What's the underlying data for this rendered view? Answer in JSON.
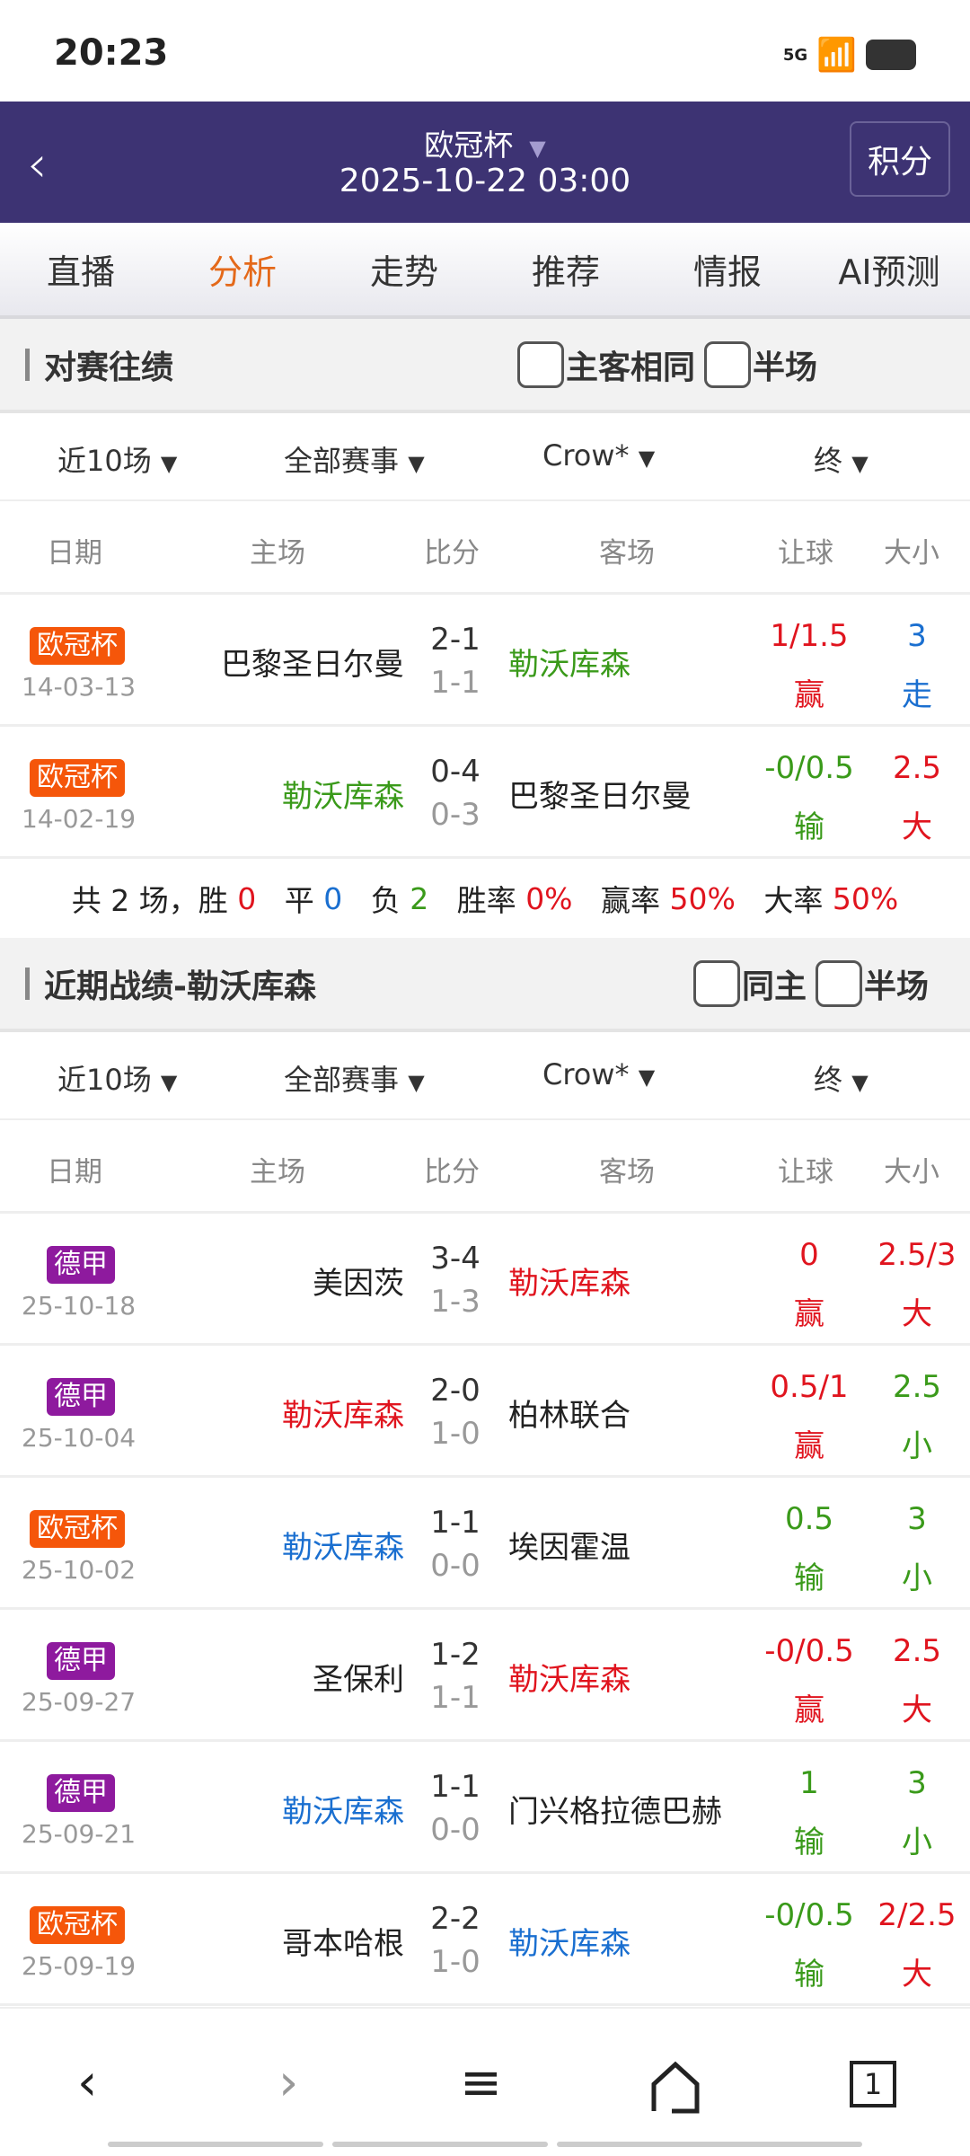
{
  "status": {
    "time": "20:23",
    "network": "5G"
  },
  "header": {
    "title": "欧冠杯",
    "datetime": "2025-10-22 03:00",
    "standings_button": "积分"
  },
  "tabs": [
    {
      "label": "直播"
    },
    {
      "label": "分析",
      "active": true
    },
    {
      "label": "走势"
    },
    {
      "label": "推荐"
    },
    {
      "label": "情报"
    },
    {
      "label": "AI预测"
    }
  ],
  "colors": {
    "header": "#3d3373",
    "accent": "#e4691a",
    "red": "#e0141e",
    "green": "#3a9a1a",
    "blue": "#1a6fd0",
    "badge_ucl": "#f5560a",
    "badge_bundesliga": "#8e1a9e"
  },
  "columns": [
    "日期",
    "主场",
    "比分",
    "客场",
    "让球",
    "大小"
  ],
  "h2h": {
    "title": "对赛往绩",
    "check1": "主客相同",
    "check2": "半场",
    "filters": [
      "近10场",
      "全部赛事",
      "Crow*",
      "终"
    ],
    "rows": [
      {
        "league": "欧冠杯",
        "lc": "badge_ucl",
        "date": "14-03-13",
        "home": "巴黎圣日尔曼",
        "hc": "#222",
        "score": "2-1",
        "half": "1-1",
        "away": "勒沃库森",
        "ac": "green",
        "hcap": "1/1.5",
        "hcapc": "red",
        "hres": "赢",
        "hresc": "red",
        "ou": "3",
        "ouc": "blue",
        "ores": "走",
        "oresc": "blue"
      },
      {
        "league": "欧冠杯",
        "lc": "badge_ucl",
        "date": "14-02-19",
        "home": "勒沃库森",
        "hc": "green",
        "score": "0-4",
        "half": "0-3",
        "away": "巴黎圣日尔曼",
        "ac": "#222",
        "hcap": "-0/0.5",
        "hcapc": "green",
        "hres": "输",
        "hresc": "green",
        "ou": "2.5",
        "ouc": "red",
        "ores": "大",
        "oresc": "red"
      }
    ],
    "summary": [
      [
        "共 2 场，",
        "#222"
      ],
      [
        "胜 ",
        "#222"
      ],
      [
        "0",
        "red"
      ],
      [
        "   平 ",
        "#222"
      ],
      [
        "0",
        "blue"
      ],
      [
        "   负 ",
        "#222"
      ],
      [
        "2",
        "green"
      ],
      [
        "   胜率 ",
        "#222"
      ],
      [
        "0%",
        "red"
      ],
      [
        "   赢率 ",
        "#222"
      ],
      [
        "50%",
        "red"
      ],
      [
        "   大率 ",
        "#222"
      ],
      [
        "50%",
        "red"
      ]
    ]
  },
  "recent": {
    "title": "近期战绩-勒沃库森",
    "check1": "同主",
    "check2": "半场",
    "filters": [
      "近10场",
      "全部赛事",
      "Crow*",
      "终"
    ],
    "rows": [
      {
        "league": "德甲",
        "lc": "badge_bundesliga",
        "date": "25-10-18",
        "home": "美因茨",
        "hc": "#222",
        "score": "3-4",
        "half": "1-3",
        "away": "勒沃库森",
        "ac": "red",
        "hcap": "0",
        "hcapc": "red",
        "hres": "赢",
        "hresc": "red",
        "ou": "2.5/3",
        "ouc": "red",
        "ores": "大",
        "oresc": "red"
      },
      {
        "league": "德甲",
        "lc": "badge_bundesliga",
        "date": "25-10-04",
        "home": "勒沃库森",
        "hc": "red",
        "score": "2-0",
        "half": "1-0",
        "away": "柏林联合",
        "ac": "#222",
        "hcap": "0.5/1",
        "hcapc": "red",
        "hres": "赢",
        "hresc": "red",
        "ou": "2.5",
        "ouc": "green",
        "ores": "小",
        "oresc": "green"
      },
      {
        "league": "欧冠杯",
        "lc": "badge_ucl",
        "date": "25-10-02",
        "home": "勒沃库森",
        "hc": "blue",
        "score": "1-1",
        "half": "0-0",
        "away": "埃因霍温",
        "ac": "#222",
        "hcap": "0.5",
        "hcapc": "green",
        "hres": "输",
        "hresc": "green",
        "ou": "3",
        "ouc": "green",
        "ores": "小",
        "oresc": "green"
      },
      {
        "league": "德甲",
        "lc": "badge_bundesliga",
        "date": "25-09-27",
        "home": "圣保利",
        "hc": "#222",
        "score": "1-2",
        "half": "1-1",
        "away": "勒沃库森",
        "ac": "red",
        "hcap": "-0/0.5",
        "hcapc": "red",
        "hres": "赢",
        "hresc": "red",
        "ou": "2.5",
        "ouc": "red",
        "ores": "大",
        "oresc": "red"
      },
      {
        "league": "德甲",
        "lc": "badge_bundesliga",
        "date": "25-09-21",
        "home": "勒沃库森",
        "hc": "blue",
        "score": "1-1",
        "half": "0-0",
        "away": "门兴格拉德巴赫",
        "ac": "#222",
        "hcap": "1",
        "hcapc": "green",
        "hres": "输",
        "hresc": "green",
        "ou": "3",
        "ouc": "green",
        "ores": "小",
        "oresc": "green"
      },
      {
        "league": "欧冠杯",
        "lc": "badge_ucl",
        "date": "25-09-19",
        "home": "哥本哈根",
        "hc": "#222",
        "score": "2-2",
        "half": "1-0",
        "away": "勒沃库森",
        "ac": "blue",
        "hcap": "-0/0.5",
        "hcapc": "green",
        "hres": "输",
        "hresc": "green",
        "ou": "2/2.5",
        "ouc": "red",
        "ores": "大",
        "oresc": "red"
      }
    ]
  },
  "bottom_nav": {
    "icons": [
      "back-icon",
      "forward-icon",
      "menu-icon",
      "home-icon",
      "tabs-icon"
    ],
    "tab_count": "1"
  }
}
